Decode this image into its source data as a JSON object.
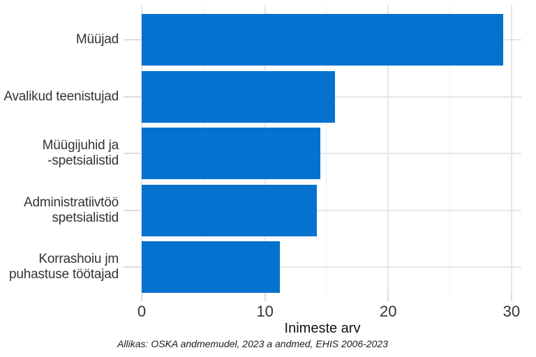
{
  "chart_data": {
    "type": "bar",
    "orientation": "horizontal",
    "title": "",
    "xlabel": "Inimeste arv",
    "ylabel": "",
    "caption": "Allikas: OSKA andmemudel, 2023 a andmed, EHIS 2006-2023",
    "categories": [
      "Müüjad",
      "Avalikud teenistujad",
      "Müügijuhid ja -spetsialistid",
      "Administratiivtöö spetsialistid",
      "Korrashoiu jm puhastuse töötajad"
    ],
    "category_lines": [
      [
        "Müüjad"
      ],
      [
        "Avalikud teenistujad"
      ],
      [
        "Müügijuhid ja",
        "-spetsialistid"
      ],
      [
        "Administratiivtöö",
        "spetsialistid"
      ],
      [
        "Korrashoiu jm",
        "puhastuse töötajad"
      ]
    ],
    "values": [
      29.3,
      15.7,
      14.5,
      14.2,
      11.2
    ],
    "x_ticks": [
      0,
      10,
      20,
      30
    ],
    "x_minor_ticks": [
      5,
      15,
      25
    ],
    "xlim": [
      0,
      30.8
    ],
    "grid": true,
    "legend": false,
    "bar_color": "#0572cf",
    "grid_major_color": "#e6e6e6",
    "grid_minor_color": "#efefef",
    "tick_color": "#dcdcdc",
    "axis_text_color": "#333333",
    "background_color": "#ffffff"
  }
}
